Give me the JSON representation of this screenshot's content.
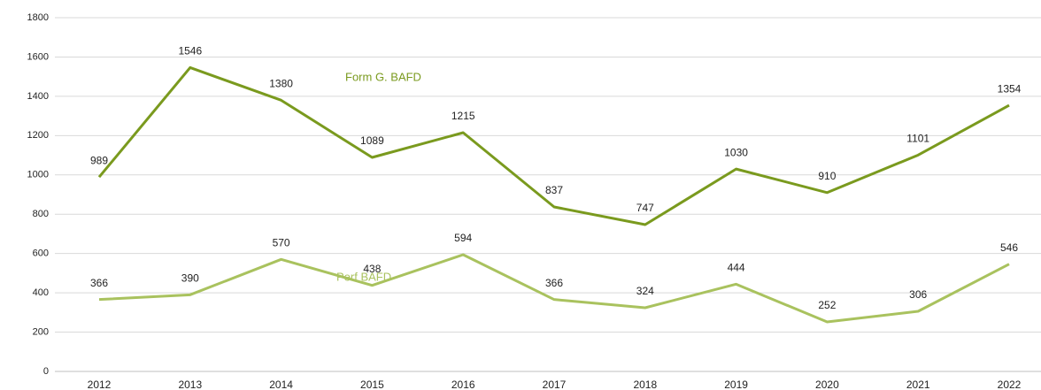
{
  "chart_data": {
    "type": "line",
    "categories": [
      "2012",
      "2013",
      "2014",
      "2015",
      "2016",
      "2017",
      "2018",
      "2019",
      "2020",
      "2021",
      "2022"
    ],
    "series": [
      {
        "name": "Form G. BAFD",
        "color": "#7a9a1e",
        "values": [
          989,
          1546,
          1380,
          1089,
          1215,
          837,
          747,
          1030,
          910,
          1101,
          1354
        ]
      },
      {
        "name": "Perf BAFD",
        "color": "#a9c25e",
        "values": [
          366,
          390,
          570,
          438,
          594,
          366,
          324,
          444,
          252,
          306,
          546
        ]
      }
    ],
    "ylim": [
      0,
      1800
    ],
    "yticks": [
      0,
      200,
      400,
      600,
      800,
      1000,
      1200,
      1400,
      1600,
      1800
    ],
    "grid": true
  }
}
